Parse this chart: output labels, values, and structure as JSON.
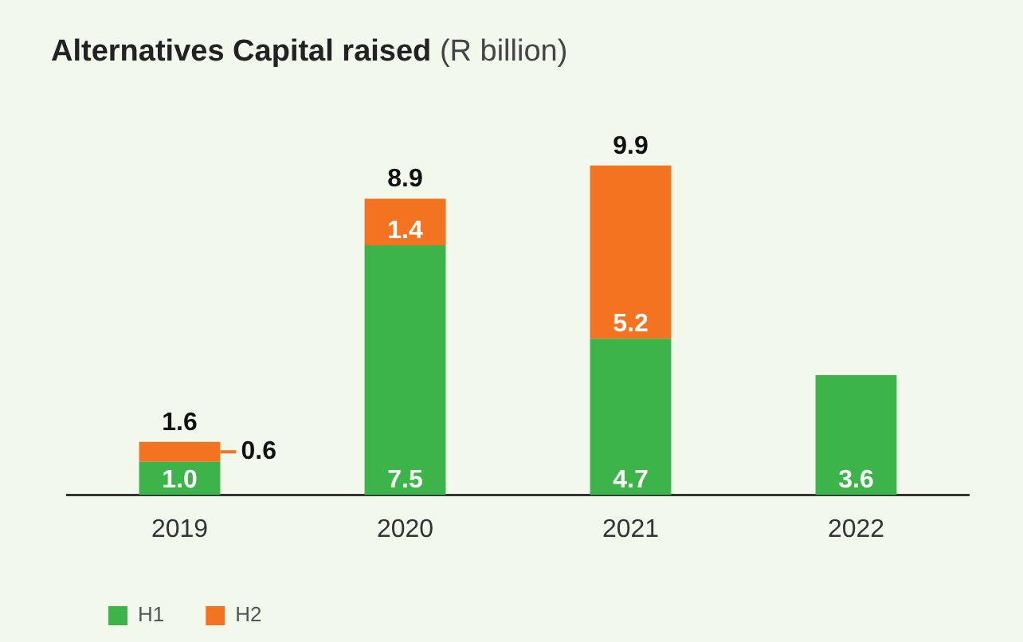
{
  "chart_data": {
    "type": "bar",
    "title": "Alternatives Capital raised",
    "subtitle": "(R billion)",
    "categories": [
      "2019",
      "2020",
      "2021",
      "2022"
    ],
    "stacked": true,
    "series": [
      {
        "name": "H1",
        "color": "#3cb44a",
        "values": [
          1.0,
          7.5,
          4.7,
          3.6
        ],
        "value_labels": [
          "1.0",
          "7.5",
          "4.7",
          "3.6"
        ]
      },
      {
        "name": "H2",
        "color": "#f47320",
        "values": [
          0.6,
          1.4,
          5.2,
          null
        ],
        "value_labels": [
          "0.6",
          "1.4",
          "5.2",
          null
        ]
      }
    ],
    "totals": [
      "1.6",
      "8.9",
      "9.9",
      null
    ],
    "grid": false,
    "legend": "bottom left",
    "tick_labels": "x"
  }
}
